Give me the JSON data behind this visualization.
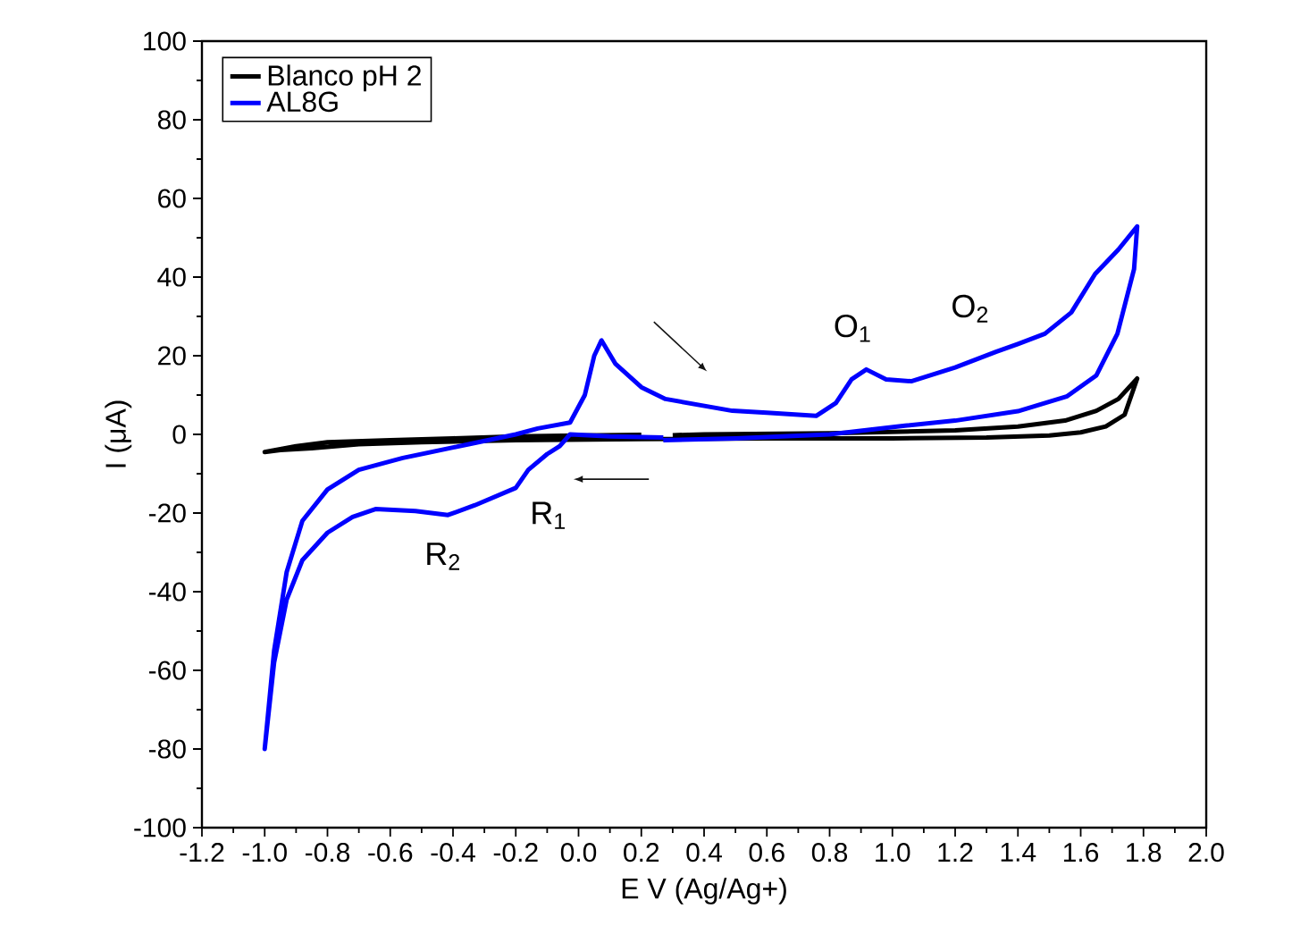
{
  "chart_data": {
    "type": "line",
    "xlabel": "E V (Ag/Ag+)",
    "ylabel": "I (μA)",
    "xlim": [
      -1.2,
      2.0
    ],
    "ylim": [
      -100,
      100
    ],
    "xticks": [
      -1.2,
      {
        "value": -1.0,
        "label": "-1.0"
      },
      -0.8,
      -0.6,
      -0.4,
      -0.2,
      {
        "value": 0.0,
        "label": "0.0"
      },
      0.2,
      0.4,
      0.6,
      0.8,
      {
        "value": 1.0,
        "label": "1.0"
      },
      1.2,
      1.4,
      1.6,
      1.8,
      {
        "value": 2.0,
        "label": "2.0"
      }
    ],
    "yticks": [
      -100,
      -80,
      -60,
      -40,
      -20,
      0,
      20,
      40,
      60,
      80,
      100
    ],
    "legend": "top left",
    "grid": false,
    "marker": "none",
    "line_style": "solid",
    "series": [
      {
        "name": "Blanco pH 2",
        "color": "#000000",
        "x": [
          0.3,
          0.4,
          0.8,
          1.2,
          1.4,
          1.55,
          1.65,
          1.72,
          1.78,
          1.74,
          1.68,
          1.6,
          1.5,
          1.3,
          1.0,
          0.6,
          0.2,
          -0.2,
          -0.5,
          -0.7,
          -0.85,
          -0.95,
          -1.0,
          -0.9,
          -0.8,
          -0.6,
          -0.4,
          -0.2,
          0.0,
          0.2
        ],
        "values": [
          -0.2,
          0,
          0.3,
          1,
          2,
          3.5,
          6,
          9,
          14.2,
          5,
          2,
          0.5,
          -0.3,
          -0.8,
          -1,
          -1,
          -1.2,
          -1.5,
          -2,
          -2.5,
          -3.5,
          -4,
          -4.5,
          -3,
          -2,
          -1.5,
          -1,
          -0.5,
          -0.3,
          -0.1
        ]
      },
      {
        "name": "AL8G",
        "color": "#0000ff",
        "x": [
          0.27,
          0.5,
          0.8,
          1.04,
          1.2,
          1.4,
          1.557,
          1.65,
          1.717,
          1.77,
          1.78,
          1.72,
          1.646,
          1.57,
          1.486,
          1.4,
          1.33,
          1.2,
          1.06,
          0.98,
          0.917,
          0.87,
          0.82,
          0.757,
          0.6,
          0.49,
          0.277,
          0.2,
          0.117,
          0.073,
          0.05,
          0.02,
          -0.027,
          -0.13,
          -0.2,
          -0.35,
          -0.56,
          -0.7,
          -0.8,
          -0.88,
          -0.93,
          -0.97,
          -1.0,
          -0.97,
          -0.93,
          -0.88,
          -0.8,
          -0.72,
          -0.647,
          -0.52,
          -0.416,
          -0.33,
          -0.2,
          -0.16,
          -0.1,
          -0.06,
          -0.027,
          0.1,
          0.27
        ],
        "values": [
          -1.5,
          -1,
          0,
          2.2,
          3.5,
          5.9,
          9.7,
          15,
          25.6,
          42,
          52.9,
          47,
          40.8,
          31,
          25.6,
          23,
          21,
          17,
          13.5,
          14,
          16.5,
          14,
          8,
          4.7,
          5.5,
          6,
          9,
          12,
          18,
          23.9,
          20,
          10,
          3,
          1.5,
          0,
          -2.5,
          -6,
          -9,
          -14,
          -22,
          -35,
          -55,
          -80,
          -58,
          -42,
          -32,
          -25,
          -21,
          -19,
          -19.5,
          -20.5,
          -18,
          -13.6,
          -9,
          -5,
          -3,
          0,
          -0.5,
          -0.8
        ]
      }
    ],
    "annotations": [
      "O$_{1}$",
      "O$_{2}$",
      "R$_{1}$",
      "R$_{2}$"
    ]
  }
}
